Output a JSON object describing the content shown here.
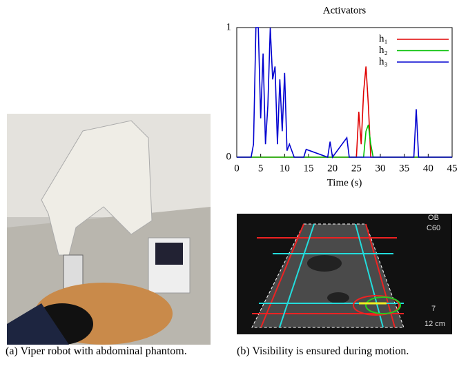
{
  "chart_data": {
    "type": "line",
    "title": "Activators",
    "x_label": "Time (s)",
    "x": [
      0,
      3,
      3.5,
      4,
      4.5,
      5,
      5.5,
      6,
      6.5,
      7,
      7.5,
      8,
      8.5,
      9,
      9.5,
      10,
      10.5,
      11,
      12,
      14,
      14.5,
      19,
      19.5,
      20,
      23,
      23.5,
      24,
      25,
      25.5,
      26,
      26.5,
      27,
      27.5,
      28,
      28.5,
      29,
      33,
      37,
      37.5,
      38,
      40,
      45
    ],
    "series": [
      {
        "name": "h₁",
        "color": "#e00000",
        "values": [
          0,
          0,
          0,
          0,
          0,
          0,
          0,
          0,
          0,
          0,
          0,
          0,
          0,
          0,
          0,
          0,
          0,
          0,
          0,
          0,
          0,
          0,
          0,
          0,
          0,
          0,
          0,
          0,
          0.35,
          0.1,
          0.5,
          0.7,
          0.4,
          0,
          0,
          0,
          0,
          0,
          0,
          0,
          0,
          0
        ]
      },
      {
        "name": "h₂",
        "color": "#00c000",
        "values": [
          0,
          0,
          0,
          0,
          0,
          0,
          0,
          0,
          0,
          0,
          0,
          0,
          0,
          0,
          0,
          0,
          0,
          0,
          0,
          0,
          0,
          0,
          0,
          0,
          0,
          0,
          0,
          0,
          0,
          0,
          0,
          0.2,
          0.25,
          0.1,
          0,
          0,
          0,
          0,
          0,
          0,
          0,
          0
        ]
      },
      {
        "name": "h₃",
        "color": "#0000d0",
        "values": [
          0,
          0,
          0.1,
          1,
          1,
          0.3,
          0.8,
          0.1,
          0.4,
          1,
          0.6,
          0.7,
          0.1,
          0.6,
          0.2,
          0.65,
          0.05,
          0.1,
          0,
          0,
          0.06,
          0,
          0.12,
          0,
          0.15,
          0,
          0,
          0,
          0,
          0,
          0,
          0,
          0,
          0,
          0,
          0,
          0,
          0,
          0.37,
          0,
          0,
          0
        ]
      }
    ],
    "xlim": [
      0,
      45
    ],
    "xticks": [
      0,
      5,
      10,
      15,
      20,
      25,
      30,
      35,
      40,
      45
    ],
    "ylim": [
      0,
      1
    ],
    "yticks": [
      0,
      1
    ],
    "legend": "top-right"
  },
  "ultrasound": {
    "labels": [
      "OB",
      "C60",
      "7",
      "12 cm"
    ]
  },
  "captions": [
    "(a) Viper robot with abdominal phantom.",
    "(b) Visibility is ensured during motion."
  ]
}
